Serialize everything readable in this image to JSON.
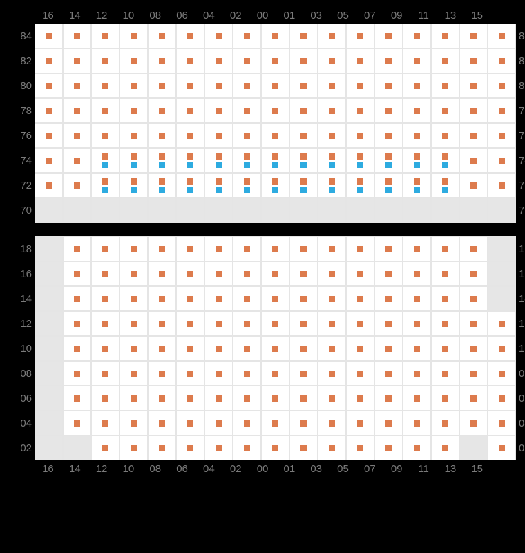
{
  "colors": {
    "orange": "#dd7b4d",
    "blue": "#2dabe0",
    "blank": "#e6e6e6",
    "cell_bg": "#ffffff",
    "grid_line": "#e5e5e5",
    "page_bg": "#000000",
    "label_color": "#7a7a7a"
  },
  "columns": [
    "16",
    "14",
    "12",
    "10",
    "08",
    "06",
    "04",
    "02",
    "00",
    "01",
    "03",
    "05",
    "07",
    "09",
    "11",
    "13",
    "15"
  ],
  "sections": [
    {
      "id": "upper",
      "show_col_header_top": true,
      "show_col_header_bottom": false,
      "rows": [
        {
          "label": "84",
          "cells": [
            "o",
            "o",
            "o",
            "o",
            "o",
            "o",
            "o",
            "o",
            "o",
            "o",
            "o",
            "o",
            "o",
            "o",
            "o",
            "o",
            "o"
          ]
        },
        {
          "label": "82",
          "cells": [
            "o",
            "o",
            "o",
            "o",
            "o",
            "o",
            "o",
            "o",
            "o",
            "o",
            "o",
            "o",
            "o",
            "o",
            "o",
            "o",
            "o"
          ]
        },
        {
          "label": "80",
          "cells": [
            "o",
            "o",
            "o",
            "o",
            "o",
            "o",
            "o",
            "o",
            "o",
            "o",
            "o",
            "o",
            "o",
            "o",
            "o",
            "o",
            "o"
          ]
        },
        {
          "label": "78",
          "cells": [
            "o",
            "o",
            "o",
            "o",
            "o",
            "o",
            "o",
            "o",
            "o",
            "o",
            "o",
            "o",
            "o",
            "o",
            "o",
            "o",
            "o"
          ]
        },
        {
          "label": "76",
          "cells": [
            "o",
            "o",
            "o",
            "o",
            "o",
            "o",
            "o",
            "o",
            "o",
            "o",
            "o",
            "o",
            "o",
            "o",
            "o",
            "o",
            "o"
          ]
        },
        {
          "label": "74",
          "cells": [
            "o",
            "o",
            "ob",
            "ob",
            "ob",
            "ob",
            "ob",
            "ob",
            "ob",
            "ob",
            "ob",
            "ob",
            "ob",
            "ob",
            "ob",
            "o",
            "o"
          ]
        },
        {
          "label": "72",
          "cells": [
            "o",
            "o",
            "ob",
            "ob",
            "ob",
            "ob",
            "ob",
            "ob",
            "ob",
            "ob",
            "ob",
            "ob",
            "ob",
            "ob",
            "ob",
            "o",
            "o"
          ]
        },
        {
          "label": "70",
          "cells": [
            "x",
            "x",
            "x",
            "x",
            "x",
            "x",
            "x",
            "x",
            "x",
            "x",
            "x",
            "x",
            "x",
            "x",
            "x",
            "x",
            "x"
          ]
        }
      ]
    },
    {
      "id": "lower",
      "show_col_header_top": false,
      "show_col_header_bottom": true,
      "rows": [
        {
          "label": "18",
          "cells": [
            "x",
            "o",
            "o",
            "o",
            "o",
            "o",
            "o",
            "o",
            "o",
            "o",
            "o",
            "o",
            "o",
            "o",
            "o",
            "o",
            "x"
          ]
        },
        {
          "label": "16",
          "cells": [
            "x",
            "o",
            "o",
            "o",
            "o",
            "o",
            "o",
            "o",
            "o",
            "o",
            "o",
            "o",
            "o",
            "o",
            "o",
            "o",
            "x"
          ]
        },
        {
          "label": "14",
          "cells": [
            "x",
            "o",
            "o",
            "o",
            "o",
            "o",
            "o",
            "o",
            "o",
            "o",
            "o",
            "o",
            "o",
            "o",
            "o",
            "o",
            "x"
          ]
        },
        {
          "label": "12",
          "cells": [
            "x",
            "o",
            "o",
            "o",
            "o",
            "o",
            "o",
            "o",
            "o",
            "o",
            "o",
            "o",
            "o",
            "o",
            "o",
            "o",
            "o"
          ]
        },
        {
          "label": "10",
          "cells": [
            "x",
            "o",
            "o",
            "o",
            "o",
            "o",
            "o",
            "o",
            "o",
            "o",
            "o",
            "o",
            "o",
            "o",
            "o",
            "o",
            "o"
          ]
        },
        {
          "label": "08",
          "cells": [
            "x",
            "o",
            "o",
            "o",
            "o",
            "o",
            "o",
            "o",
            "o",
            "o",
            "o",
            "o",
            "o",
            "o",
            "o",
            "o",
            "o"
          ]
        },
        {
          "label": "06",
          "cells": [
            "x",
            "o",
            "o",
            "o",
            "o",
            "o",
            "o",
            "o",
            "o",
            "o",
            "o",
            "o",
            "o",
            "o",
            "o",
            "o",
            "o"
          ]
        },
        {
          "label": "04",
          "cells": [
            "x",
            "o",
            "o",
            "o",
            "o",
            "o",
            "o",
            "o",
            "o",
            "o",
            "o",
            "o",
            "o",
            "o",
            "o",
            "o",
            "o"
          ]
        },
        {
          "label": "02",
          "cells": [
            "x",
            "x",
            "o",
            "o",
            "o",
            "o",
            "o",
            "o",
            "o",
            "o",
            "o",
            "o",
            "o",
            "o",
            "o",
            "x",
            "o"
          ]
        }
      ]
    }
  ]
}
